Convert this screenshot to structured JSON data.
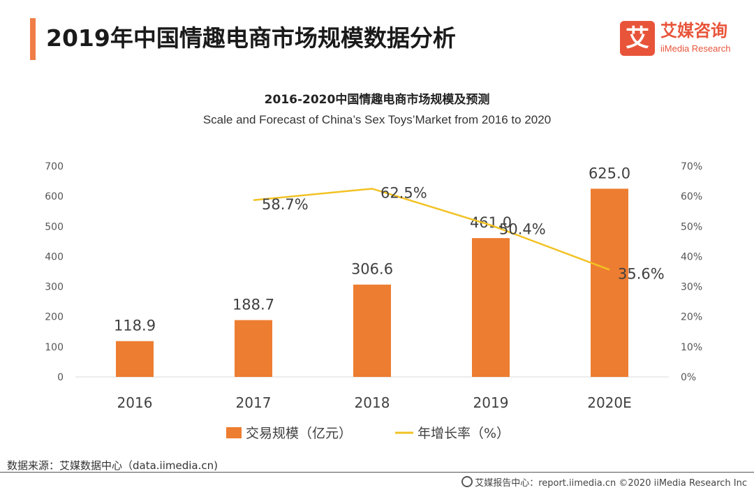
{
  "header": {
    "title": "2019年中国情趣电商市场规模数据分析",
    "logo_mark": "艾",
    "logo_cn": "艾媒咨询",
    "logo_en": "iiMedia Research"
  },
  "source_text": "数据来源：艾媒数据中心（data.iimedia.cn)",
  "footer_text": "艾媒报告中心：report.iimedia.cn    ©2020  iiMedia Research  Inc",
  "colors": {
    "accent": "#f07d46",
    "bar": "#ed7d31",
    "line": "#f2c224"
  },
  "chart_data": {
    "type": "bar",
    "title": "2016-2020中国情趣电商市场规模及预测",
    "subtitle": "Scale and Forecast of China’s Sex Toys’Market from 2016 to 2020",
    "categories": [
      "2016",
      "2017",
      "2018",
      "2019",
      "2020E"
    ],
    "ylim_left": [
      0,
      700
    ],
    "yticks_left": [
      "0",
      "100",
      "200",
      "300",
      "400",
      "500",
      "600",
      "700"
    ],
    "ylim_right": [
      0,
      70
    ],
    "yticks_right": [
      "0%",
      "10%",
      "20%",
      "30%",
      "40%",
      "50%",
      "60%",
      "70%"
    ],
    "legend_position": "bottom",
    "grid": false,
    "series": [
      {
        "name": "交易规模（亿元）",
        "type": "bar",
        "axis": "left",
        "values": [
          118.9,
          188.7,
          306.6,
          461.0,
          625.0
        ],
        "labels": [
          "118.9",
          "188.7",
          "306.6",
          "461.0",
          "625.0"
        ]
      },
      {
        "name": "年增长率（%）",
        "type": "line",
        "axis": "right",
        "values": [
          null,
          58.7,
          62.5,
          50.4,
          35.6
        ],
        "labels": [
          "",
          "58.7%",
          "62.5%",
          "50.4%",
          "35.6%"
        ]
      }
    ]
  }
}
